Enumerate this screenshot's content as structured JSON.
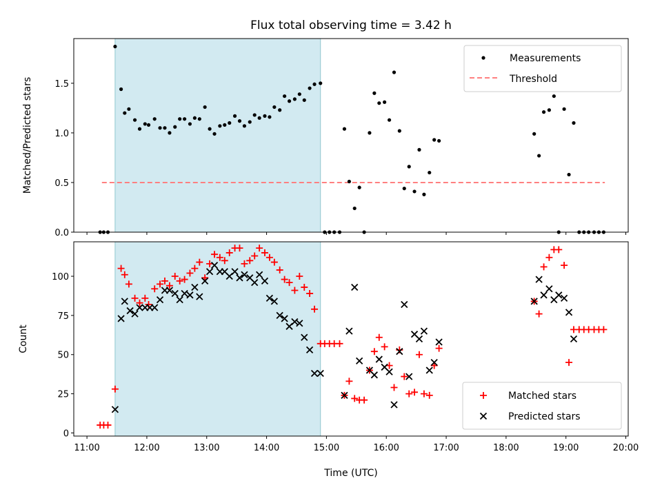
{
  "chart_data": {
    "type": "scatter",
    "title": "Flux total observing time = 3.42 h",
    "xlabel": "Time (UTC)",
    "x_tick_labels": [
      "11:00",
      "12:00",
      "13:00",
      "14:00",
      "15:00",
      "16:00",
      "17:00",
      "18:00",
      "19:00",
      "20:00"
    ],
    "x_ticks_hours": [
      11,
      12,
      13,
      14,
      15,
      16,
      17,
      18,
      19,
      20
    ],
    "xlim_hours": [
      10.78,
      20.04
    ],
    "shaded_span_hours": [
      11.47,
      14.9
    ],
    "colors": {
      "shade": "#add8e6",
      "threshold": "#ff7f7f",
      "measurements": "#000000",
      "matched": "#ff0000",
      "predicted": "#000000"
    },
    "panels": [
      {
        "ylabel": "Matched/Predicted stars",
        "ylim": [
          0,
          1.95
        ],
        "y_ticks": [
          0.0,
          0.5,
          1.0,
          1.5
        ],
        "y_tick_labels": [
          "0.0",
          "0.5",
          "1.0",
          "1.5"
        ],
        "legend": {
          "position": "upper right",
          "entries": [
            "Measurements",
            "Threshold"
          ]
        },
        "threshold": {
          "name": "Threshold",
          "value": 0.5,
          "x_range_hours": [
            11.25,
            19.65
          ]
        },
        "series": [
          {
            "name": "Measurements",
            "marker": "dot",
            "x": [
              11.22,
              11.28,
              11.35,
              11.47,
              11.57,
              11.63,
              11.7,
              11.8,
              11.88,
              11.97,
              12.03,
              12.13,
              12.22,
              12.3,
              12.38,
              12.47,
              12.55,
              12.63,
              12.72,
              12.8,
              12.88,
              12.97,
              13.05,
              13.13,
              13.22,
              13.3,
              13.38,
              13.47,
              13.55,
              13.63,
              13.72,
              13.8,
              13.88,
              13.97,
              14.05,
              14.13,
              14.22,
              14.3,
              14.38,
              14.47,
              14.55,
              14.63,
              14.72,
              14.8,
              14.9,
              14.97,
              15.05,
              15.13,
              15.22,
              15.3,
              15.38,
              15.47,
              15.55,
              15.63,
              15.72,
              15.8,
              15.88,
              15.97,
              16.05,
              16.13,
              16.22,
              16.3,
              16.38,
              16.47,
              16.55,
              16.63,
              16.72,
              16.8,
              16.88,
              18.47,
              18.55,
              18.63,
              18.72,
              18.8,
              18.88,
              18.97,
              19.05,
              19.13,
              19.22,
              19.3,
              19.38,
              19.47,
              19.55,
              19.63
            ],
            "y": [
              0.0,
              0.0,
              0.0,
              1.87,
              1.44,
              1.2,
              1.24,
              1.13,
              1.04,
              1.09,
              1.08,
              1.14,
              1.05,
              1.05,
              1.0,
              1.06,
              1.14,
              1.14,
              1.09,
              1.15,
              1.14,
              1.26,
              1.04,
              0.99,
              1.07,
              1.08,
              1.1,
              1.17,
              1.12,
              1.07,
              1.11,
              1.18,
              1.15,
              1.17,
              1.16,
              1.26,
              1.23,
              1.37,
              1.32,
              1.34,
              1.39,
              1.33,
              1.45,
              1.49,
              1.5,
              0.0,
              0.0,
              0.0,
              0.0,
              1.04,
              0.51,
              0.24,
              0.45,
              0.0,
              1.0,
              1.4,
              1.3,
              1.31,
              1.13,
              1.61,
              1.02,
              0.44,
              0.66,
              0.41,
              0.83,
              0.38,
              0.6,
              0.93,
              0.92,
              0.99,
              0.77,
              1.21,
              1.23,
              1.37,
              0.0,
              1.24,
              0.58,
              1.1,
              0.0,
              0.0,
              0.0,
              0.0,
              0.0,
              0.0
            ]
          }
        ]
      },
      {
        "ylabel": "Count",
        "ylim": [
          -2,
          122
        ],
        "y_ticks": [
          0,
          25,
          50,
          75,
          100
        ],
        "y_tick_labels": [
          "0",
          "25",
          "50",
          "75",
          "100"
        ],
        "legend": {
          "position": "lower right",
          "entries": [
            "Matched stars",
            "Predicted stars"
          ]
        },
        "series": [
          {
            "name": "Matched stars",
            "marker": "plus",
            "x": [
              11.22,
              11.28,
              11.35,
              11.47,
              11.57,
              11.63,
              11.7,
              11.8,
              11.88,
              11.97,
              12.03,
              12.13,
              12.22,
              12.3,
              12.38,
              12.47,
              12.55,
              12.63,
              12.72,
              12.8,
              12.88,
              12.97,
              13.05,
              13.13,
              13.22,
              13.3,
              13.38,
              13.47,
              13.55,
              13.63,
              13.72,
              13.8,
              13.88,
              13.97,
              14.05,
              14.13,
              14.22,
              14.3,
              14.38,
              14.47,
              14.55,
              14.63,
              14.72,
              14.8,
              14.9,
              14.97,
              15.05,
              15.13,
              15.22,
              15.3,
              15.38,
              15.47,
              15.55,
              15.63,
              15.72,
              15.8,
              15.88,
              15.97,
              16.05,
              16.13,
              16.22,
              16.3,
              16.38,
              16.47,
              16.55,
              16.63,
              16.72,
              16.8,
              16.88,
              18.47,
              18.55,
              18.63,
              18.72,
              18.8,
              18.88,
              18.97,
              19.05,
              19.13,
              19.22,
              19.3,
              19.38,
              19.47,
              19.55,
              19.63
            ],
            "y": [
              5,
              5,
              5,
              28,
              105,
              101,
              95,
              86,
              83,
              86,
              82,
              92,
              95,
              97,
              94,
              100,
              97,
              98,
              102,
              105,
              109,
              99,
              108,
              114,
              112,
              110,
              115,
              118,
              118,
              108,
              110,
              113,
              118,
              115,
              112,
              109,
              104,
              98,
              96,
              91,
              100,
              93,
              89,
              79,
              57,
              57,
              57,
              57,
              57,
              24,
              33,
              22,
              21,
              21,
              40,
              52,
              61,
              55,
              43,
              29,
              53,
              36,
              25,
              26,
              50,
              25,
              24,
              43,
              54,
              84,
              76,
              106,
              112,
              117,
              117,
              107,
              45,
              66,
              66,
              66,
              66,
              66,
              66,
              66
            ]
          },
          {
            "name": "Predicted stars",
            "marker": "x",
            "x": [
              11.47,
              11.57,
              11.63,
              11.72,
              11.8,
              11.88,
              11.97,
              12.05,
              12.13,
              12.22,
              12.3,
              12.38,
              12.47,
              12.55,
              12.63,
              12.72,
              12.8,
              12.88,
              12.97,
              13.05,
              13.13,
              13.22,
              13.3,
              13.38,
              13.47,
              13.55,
              13.63,
              13.72,
              13.8,
              13.88,
              13.97,
              14.05,
              14.13,
              14.22,
              14.3,
              14.38,
              14.47,
              14.55,
              14.63,
              14.72,
              14.8,
              14.9,
              15.3,
              15.38,
              15.47,
              15.55,
              15.72,
              15.8,
              15.88,
              15.97,
              16.05,
              16.13,
              16.22,
              16.3,
              16.38,
              16.47,
              16.55,
              16.63,
              16.72,
              16.8,
              16.88,
              18.47,
              18.55,
              18.63,
              18.72,
              18.8,
              18.88,
              18.97,
              19.05,
              19.13
            ],
            "y": [
              15,
              73,
              84,
              78,
              76,
              80,
              80,
              80,
              80,
              85,
              91,
              91,
              89,
              85,
              89,
              88,
              93,
              87,
              97,
              103,
              107,
              103,
              103,
              100,
              103,
              99,
              101,
              99,
              96,
              101,
              97,
              86,
              84,
              75,
              73,
              68,
              71,
              70,
              61,
              53,
              38,
              38,
              24,
              65,
              93,
              46,
              40,
              37,
              47,
              42,
              39,
              18,
              52,
              82,
              36,
              63,
              60,
              65,
              40,
              45,
              58,
              84,
              98,
              88,
              92,
              85,
              88,
              86,
              77,
              60
            ]
          }
        ]
      }
    ]
  }
}
